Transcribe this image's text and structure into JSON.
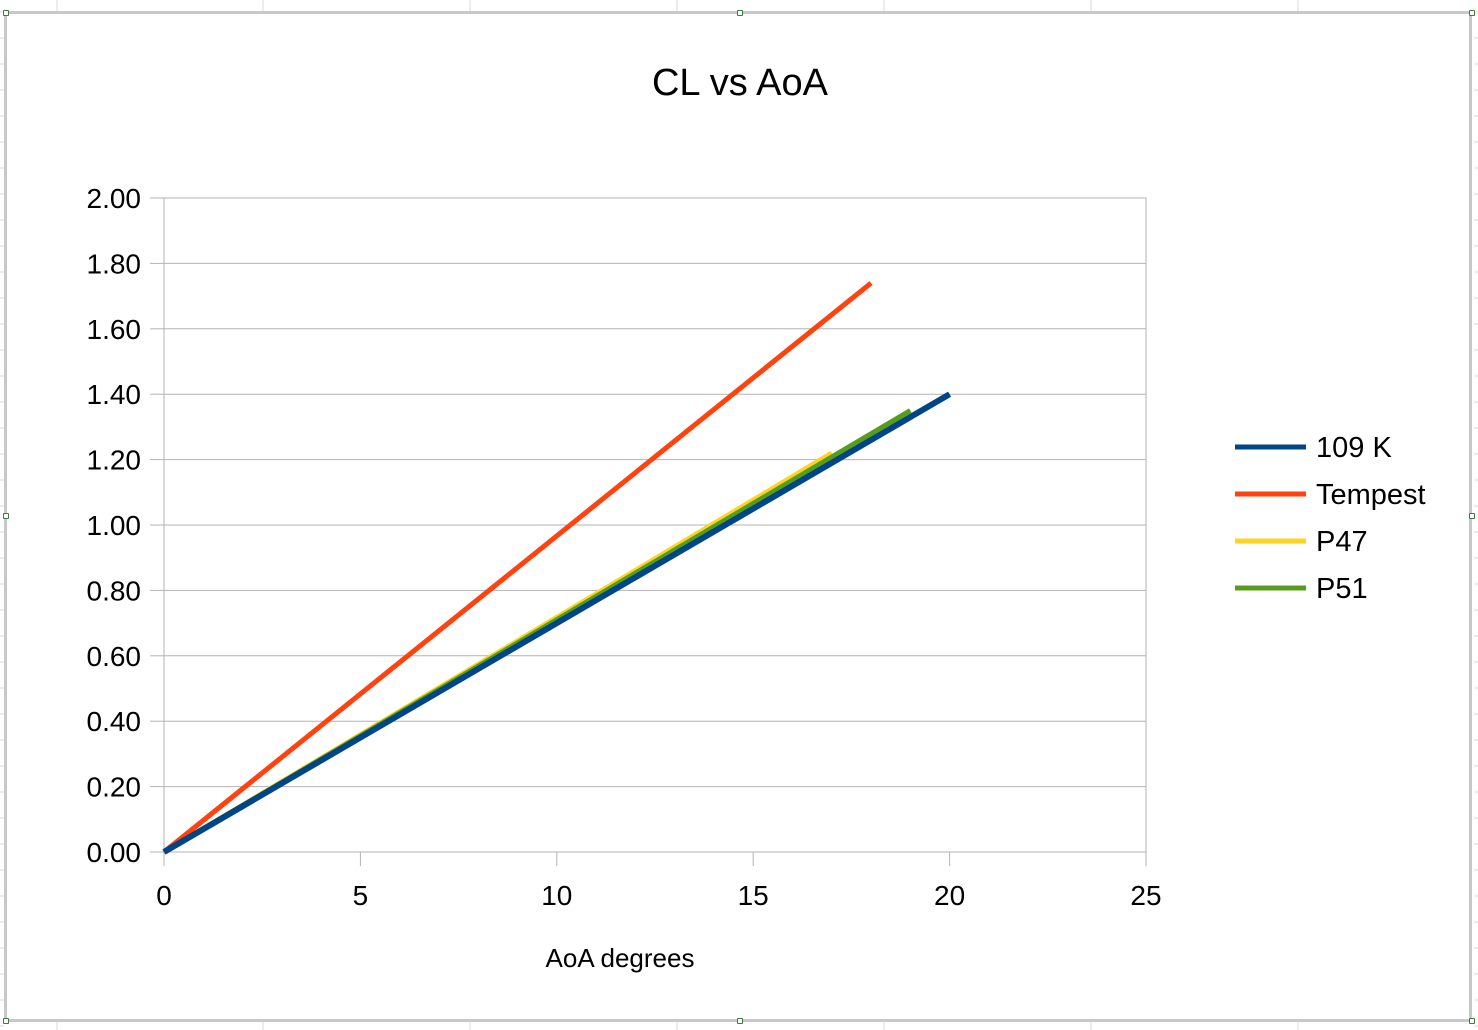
{
  "chart_data": {
    "type": "line",
    "title": "CL vs AoA",
    "xlabel": "AoA degrees",
    "ylabel": "",
    "xlim": [
      0,
      25
    ],
    "ylim": [
      0,
      2
    ],
    "x_ticks": [
      "0",
      "5",
      "10",
      "15",
      "20",
      "25"
    ],
    "y_ticks": [
      "0.00",
      "0.20",
      "0.40",
      "0.60",
      "0.80",
      "1.00",
      "1.20",
      "1.40",
      "1.60",
      "1.80",
      "2.00"
    ],
    "grid": "horizontal",
    "legend_position": "right",
    "series": [
      {
        "name": "109 K",
        "color": "#004586",
        "x": [
          0,
          20
        ],
        "y": [
          0,
          1.4
        ]
      },
      {
        "name": "Tempest",
        "color": "#ff420e",
        "x": [
          0,
          18
        ],
        "y": [
          0,
          1.74
        ]
      },
      {
        "name": "P47",
        "color": "#ffd320",
        "x": [
          0,
          17
        ],
        "y": [
          0,
          1.22
        ]
      },
      {
        "name": "P51",
        "color": "#579d1c",
        "x": [
          0,
          19
        ],
        "y": [
          0,
          1.35
        ]
      }
    ]
  }
}
